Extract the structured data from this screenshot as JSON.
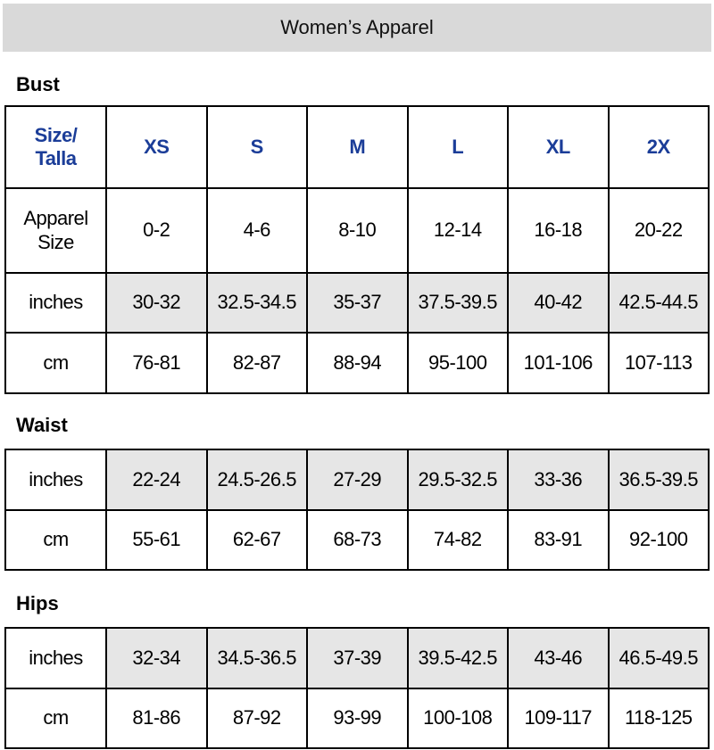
{
  "header": {
    "title": "Women’s Apparel"
  },
  "sections": [
    {
      "title": "Bust",
      "rows": [
        [
          "Size/\nTalla",
          "XS",
          "S",
          "M",
          "L",
          "XL",
          "2X"
        ],
        [
          "Apparel\nSize",
          "0-2",
          "4-6",
          "8-10",
          "12-14",
          "16-18",
          "20-22"
        ],
        [
          "inches",
          "30-32",
          "32.5-34.5",
          "35-37",
          "37.5-39.5",
          "40-42",
          "42.5-44.5"
        ],
        [
          "cm",
          "76-81",
          "82-87",
          "88-94",
          "95-100",
          "101-106",
          "107-113"
        ]
      ]
    },
    {
      "title": "Waist",
      "rows": [
        [
          "inches",
          "22-24",
          "24.5-26.5",
          "27-29",
          "29.5-32.5",
          "33-36",
          "36.5-39.5"
        ],
        [
          "cm",
          "55-61",
          "62-67",
          "68-73",
          "74-82",
          "83-91",
          "92-100"
        ]
      ]
    },
    {
      "title": "Hips",
      "rows": [
        [
          "inches",
          "32-34",
          "34.5-36.5",
          "37-39",
          "39.5-42.5",
          "43-46",
          "46.5-49.5"
        ],
        [
          "cm",
          "81-86",
          "87-92",
          "93-99",
          "100-108",
          "109-117",
          "118-125"
        ]
      ]
    }
  ]
}
